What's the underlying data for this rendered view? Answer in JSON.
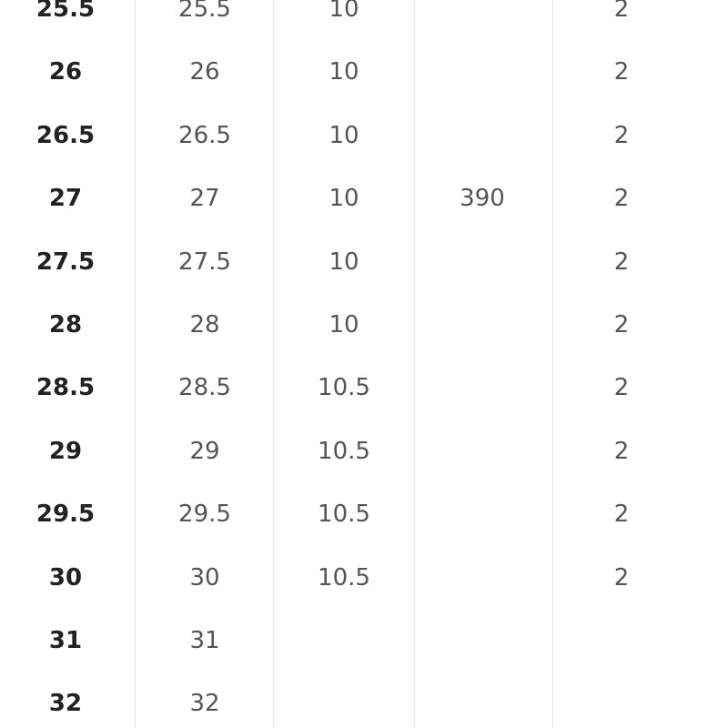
{
  "table": {
    "rows": [
      [
        "25.5",
        "25.5",
        "10",
        null,
        "2"
      ],
      [
        "26",
        "26",
        "10",
        null,
        "2"
      ],
      [
        "26.5",
        "26.5",
        "10",
        null,
        "2"
      ],
      [
        "27",
        "27",
        "10",
        "390",
        "2"
      ],
      [
        "27.5",
        "27.5",
        "10",
        null,
        "2"
      ],
      [
        "28",
        "28",
        "10",
        null,
        "2"
      ],
      [
        "28.5",
        "28.5",
        "10.5",
        null,
        "2"
      ],
      [
        "29",
        "29",
        "10.5",
        null,
        "2"
      ],
      [
        "29.5",
        "29.5",
        "10.5",
        null,
        "2"
      ],
      [
        "30",
        "30",
        "10.5",
        null,
        "2"
      ],
      [
        "31",
        "31",
        null,
        null,
        null
      ],
      [
        "32",
        "32",
        null,
        null,
        null
      ]
    ]
  }
}
